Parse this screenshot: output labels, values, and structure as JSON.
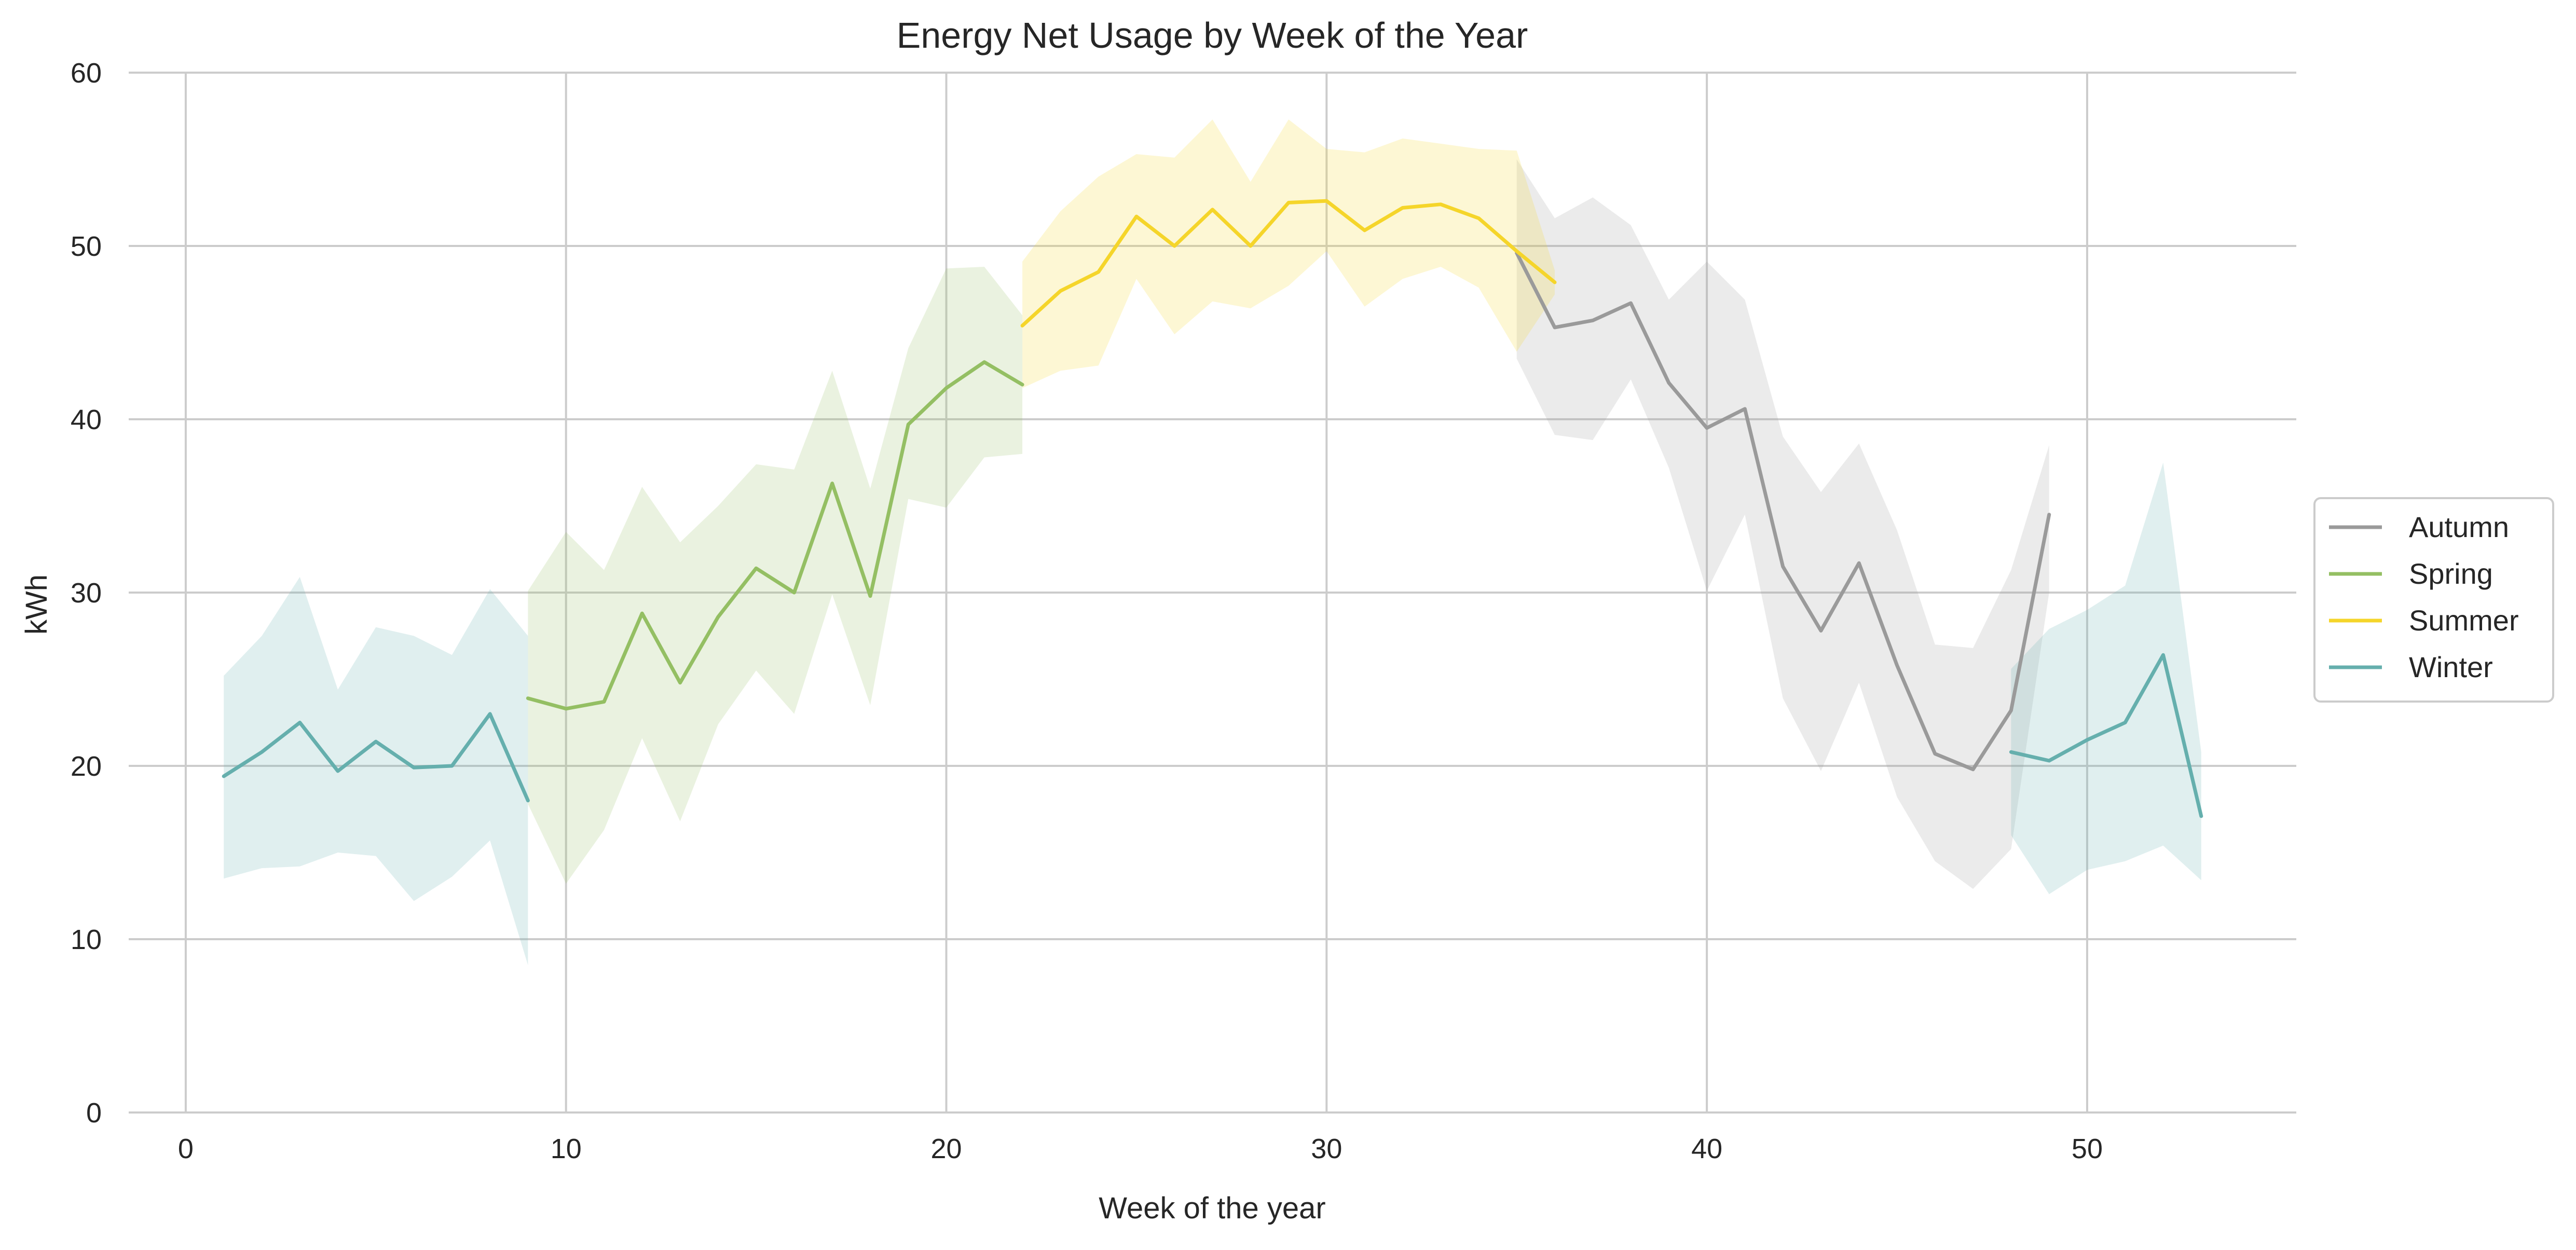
{
  "chart_data": {
    "type": "line",
    "title": "Energy Net Usage by Week of the Year",
    "xlabel": "Week of the year",
    "ylabel": "kWh",
    "xlim": [
      -1.5,
      55.5
    ],
    "ylim": [
      0,
      60
    ],
    "x_ticks": [
      "0",
      "10",
      "20",
      "30",
      "40",
      "50"
    ],
    "y_ticks": [
      "0",
      "10",
      "20",
      "30",
      "40",
      "50",
      "60"
    ],
    "grid": true,
    "legend_position": "right",
    "series": [
      {
        "name": "Autumn",
        "color": "#9a9a9a",
        "points": [
          {
            "x": 35,
            "y": 49.6,
            "lo": 43.5,
            "hi": 55.0
          },
          {
            "x": 36,
            "y": 45.3,
            "lo": 39.1,
            "hi": 51.6
          },
          {
            "x": 37,
            "y": 45.7,
            "lo": 38.8,
            "hi": 52.8
          },
          {
            "x": 38,
            "y": 46.7,
            "lo": 42.3,
            "hi": 51.2
          },
          {
            "x": 39,
            "y": 42.1,
            "lo": 37.2,
            "hi": 46.9
          },
          {
            "x": 40,
            "y": 39.5,
            "lo": 30.1,
            "hi": 49.1
          },
          {
            "x": 41,
            "y": 40.6,
            "lo": 34.5,
            "hi": 46.9
          },
          {
            "x": 42,
            "y": 31.5,
            "lo": 23.9,
            "hi": 39.0
          },
          {
            "x": 43,
            "y": 27.8,
            "lo": 19.7,
            "hi": 35.8
          },
          {
            "x": 44,
            "y": 31.7,
            "lo": 24.8,
            "hi": 38.6
          },
          {
            "x": 45,
            "y": 25.8,
            "lo": 18.2,
            "hi": 33.6
          },
          {
            "x": 46,
            "y": 20.7,
            "lo": 14.5,
            "hi": 27.0
          },
          {
            "x": 47,
            "y": 19.8,
            "lo": 12.9,
            "hi": 26.8
          },
          {
            "x": 48,
            "y": 23.2,
            "lo": 15.2,
            "hi": 31.3
          },
          {
            "x": 49,
            "y": 34.5,
            "lo": 30.0,
            "hi": 38.5
          }
        ]
      },
      {
        "name": "Spring",
        "color": "#94bf63",
        "points": [
          {
            "x": 9,
            "y": 23.9,
            "lo": 17.8,
            "hi": 30.1
          },
          {
            "x": 10,
            "y": 23.3,
            "lo": 13.2,
            "hi": 33.5
          },
          {
            "x": 11,
            "y": 23.7,
            "lo": 16.3,
            "hi": 31.3
          },
          {
            "x": 12,
            "y": 28.8,
            "lo": 21.6,
            "hi": 36.1
          },
          {
            "x": 13,
            "y": 24.8,
            "lo": 16.8,
            "hi": 32.9
          },
          {
            "x": 14,
            "y": 28.6,
            "lo": 22.4,
            "hi": 35.0
          },
          {
            "x": 15,
            "y": 31.4,
            "lo": 25.5,
            "hi": 37.4
          },
          {
            "x": 16,
            "y": 30.0,
            "lo": 23.0,
            "hi": 37.1
          },
          {
            "x": 17,
            "y": 36.3,
            "lo": 29.9,
            "hi": 42.8
          },
          {
            "x": 18,
            "y": 29.8,
            "lo": 23.5,
            "hi": 36.0
          },
          {
            "x": 19,
            "y": 39.7,
            "lo": 35.4,
            "hi": 44.1
          },
          {
            "x": 20,
            "y": 41.8,
            "lo": 34.9,
            "hi": 48.7
          },
          {
            "x": 21,
            "y": 43.3,
            "lo": 37.8,
            "hi": 48.8
          },
          {
            "x": 22,
            "y": 42.0,
            "lo": 38.0,
            "hi": 46.0
          }
        ]
      },
      {
        "name": "Summer",
        "color": "#f5d52a",
        "points": [
          {
            "x": 22,
            "y": 45.4,
            "lo": 41.8,
            "hi": 49.1
          },
          {
            "x": 23,
            "y": 47.4,
            "lo": 42.8,
            "hi": 52.0
          },
          {
            "x": 24,
            "y": 48.5,
            "lo": 43.1,
            "hi": 54.0
          },
          {
            "x": 25,
            "y": 51.7,
            "lo": 48.1,
            "hi": 55.3
          },
          {
            "x": 26,
            "y": 50.0,
            "lo": 44.9,
            "hi": 55.1
          },
          {
            "x": 27,
            "y": 52.1,
            "lo": 46.8,
            "hi": 57.3
          },
          {
            "x": 28,
            "y": 50.0,
            "lo": 46.4,
            "hi": 53.7
          },
          {
            "x": 29,
            "y": 52.5,
            "lo": 47.7,
            "hi": 57.3
          },
          {
            "x": 30,
            "y": 52.6,
            "lo": 49.7,
            "hi": 55.6
          },
          {
            "x": 31,
            "y": 50.9,
            "lo": 46.5,
            "hi": 55.4
          },
          {
            "x": 32,
            "y": 52.2,
            "lo": 48.1,
            "hi": 56.2
          },
          {
            "x": 33,
            "y": 52.4,
            "lo": 48.8,
            "hi": 55.9
          },
          {
            "x": 34,
            "y": 51.6,
            "lo": 47.6,
            "hi": 55.6
          },
          {
            "x": 35,
            "y": 49.7,
            "lo": 43.9,
            "hi": 55.5
          },
          {
            "x": 36,
            "y": 47.9,
            "lo": 47.2,
            "hi": 48.6
          }
        ]
      },
      {
        "name": "Winter",
        "color": "#65afad",
        "points": [
          {
            "x": 1,
            "y": 19.4,
            "lo": 13.5,
            "hi": 25.2
          },
          {
            "x": 2,
            "y": 20.8,
            "lo": 14.1,
            "hi": 27.5
          },
          {
            "x": 3,
            "y": 22.5,
            "lo": 14.2,
            "hi": 30.9
          },
          {
            "x": 4,
            "y": 19.7,
            "lo": 15.0,
            "hi": 24.4
          },
          {
            "x": 5,
            "y": 21.4,
            "lo": 14.8,
            "hi": 28.0
          },
          {
            "x": 6,
            "y": 19.9,
            "lo": 12.2,
            "hi": 27.5
          },
          {
            "x": 7,
            "y": 20.0,
            "lo": 13.6,
            "hi": 26.4
          },
          {
            "x": 8,
            "y": 23.0,
            "lo": 15.7,
            "hi": 30.2
          },
          {
            "x": 9,
            "y": 18.0,
            "lo": 8.5,
            "hi": 27.5
          },
          {
            "x": 48,
            "y": 20.8,
            "lo": 16.0,
            "hi": 25.6
          },
          {
            "x": 49,
            "y": 20.3,
            "lo": 12.6,
            "hi": 27.9
          },
          {
            "x": 50,
            "y": 21.5,
            "lo": 14.0,
            "hi": 29.0
          },
          {
            "x": 51,
            "y": 22.5,
            "lo": 14.5,
            "hi": 30.4
          },
          {
            "x": 52,
            "y": 26.4,
            "lo": 15.4,
            "hi": 37.5
          },
          {
            "x": 53,
            "y": 17.1,
            "lo": 13.4,
            "hi": 20.8
          }
        ]
      }
    ]
  }
}
